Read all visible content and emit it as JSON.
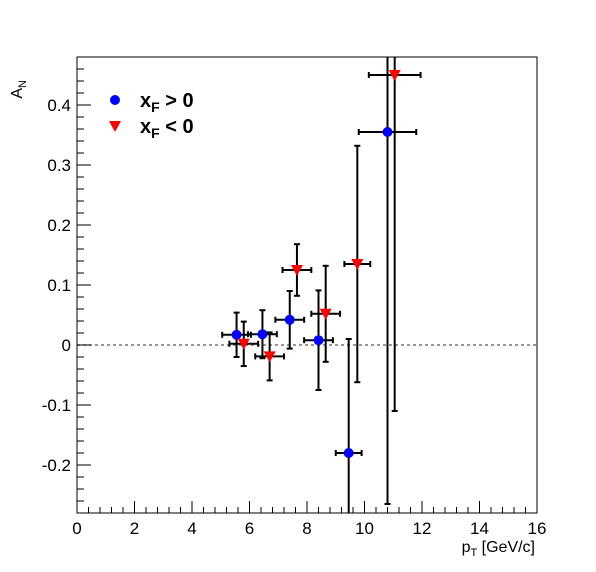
{
  "chart_data": {
    "type": "scatter",
    "xlabel": "p",
    "xlabel_sub": "T",
    "xlabel_unit": " [GeV/c]",
    "ylabel": "A",
    "ylabel_sub": "N",
    "xlim": [
      0,
      16
    ],
    "ylim": [
      -0.28,
      0.48
    ],
    "x_ticks": [
      "0",
      "2",
      "4",
      "6",
      "8",
      "10",
      "12",
      "14",
      "16"
    ],
    "y_ticks": [
      "-0.2",
      "-0.1",
      "0",
      "0.1",
      "0.2",
      "0.3",
      "0.4"
    ],
    "reference_line": 0,
    "legend_position": "top-left",
    "series": [
      {
        "name": "x",
        "name_sub": "F",
        "name_rest": " > 0",
        "marker": "circle",
        "color": "#0000ff",
        "points": [
          {
            "x": 5.55,
            "y": 0.017,
            "xerr": 0.5,
            "yerr": 0.037
          },
          {
            "x": 6.45,
            "y": 0.018,
            "xerr": 0.5,
            "yerr": 0.04
          },
          {
            "x": 7.4,
            "y": 0.042,
            "xerr": 0.5,
            "yerr": 0.048
          },
          {
            "x": 8.4,
            "y": 0.008,
            "xerr": 0.5,
            "yerr": 0.083
          },
          {
            "x": 9.45,
            "y": -0.18,
            "xerr": 0.45,
            "yerr": 0.19
          },
          {
            "x": 10.8,
            "y": 0.355,
            "xerr": 1.0,
            "yerr": 0.62
          }
        ]
      },
      {
        "name": "x",
        "name_sub": "F",
        "name_rest": " < 0",
        "marker": "triangle-down",
        "color": "#ff0000",
        "points": [
          {
            "x": 5.8,
            "y": 0.002,
            "xerr": 0.5,
            "yerr": 0.037
          },
          {
            "x": 6.7,
            "y": -0.019,
            "xerr": 0.5,
            "yerr": 0.04
          },
          {
            "x": 7.65,
            "y": 0.125,
            "xerr": 0.5,
            "yerr": 0.043
          },
          {
            "x": 8.65,
            "y": 0.052,
            "xerr": 0.5,
            "yerr": 0.08
          },
          {
            "x": 9.75,
            "y": 0.135,
            "xerr": 0.45,
            "yerr": 0.197
          },
          {
            "x": 11.05,
            "y": 0.45,
            "xerr": 0.9,
            "yerr": 0.56
          }
        ]
      }
    ]
  }
}
